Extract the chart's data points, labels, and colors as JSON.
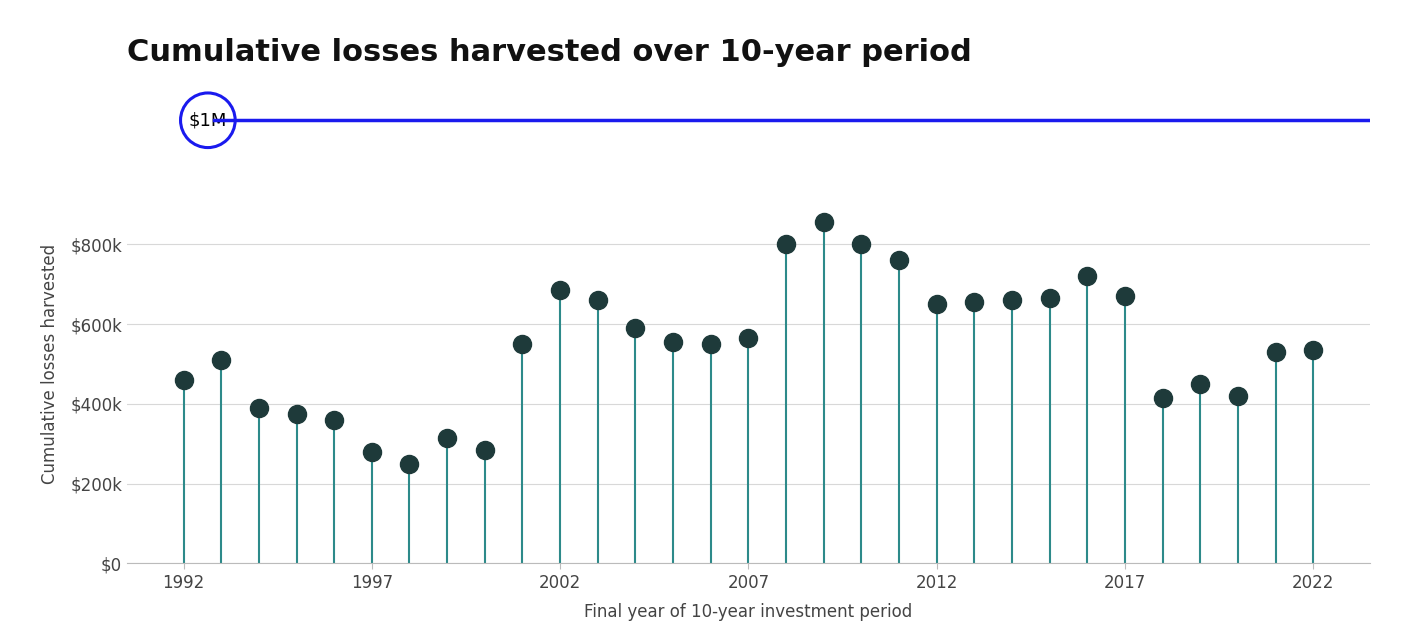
{
  "title": "Cumulative losses harvested over 10-year period",
  "xlabel": "Final year of 10-year investment period",
  "ylabel": "Cumulative losses harvested",
  "reference_line_value": 1000000,
  "reference_line_label": "$1M",
  "years": [
    1992,
    1993,
    1994,
    1995,
    1996,
    1997,
    1998,
    1999,
    2000,
    2001,
    2002,
    2003,
    2004,
    2005,
    2006,
    2007,
    2008,
    2009,
    2010,
    2011,
    2012,
    2013,
    2014,
    2015,
    2016,
    2017,
    2018,
    2019,
    2020,
    2021,
    2022
  ],
  "values": [
    460000,
    510000,
    390000,
    375000,
    360000,
    280000,
    250000,
    315000,
    285000,
    550000,
    685000,
    660000,
    590000,
    555000,
    550000,
    565000,
    800000,
    855000,
    800000,
    760000,
    650000,
    655000,
    660000,
    665000,
    720000,
    670000,
    415000,
    450000,
    420000,
    530000,
    535000
  ],
  "ylim": [
    0,
    1000000
  ],
  "yticks": [
    0,
    200000,
    400000,
    600000,
    800000
  ],
  "ytick_labels": [
    "$0",
    "$200k",
    "$400k",
    "$600k",
    "$800k"
  ],
  "xticks": [
    1992,
    1997,
    2002,
    2007,
    2012,
    2017,
    2022
  ],
  "stem_color": "#2d8a8a",
  "dot_color": "#1e3a3a",
  "reference_line_color": "#1a1aee",
  "background_color": "#ffffff",
  "grid_color": "#d8d8d8",
  "title_fontsize": 22,
  "label_fontsize": 12,
  "tick_fontsize": 12
}
